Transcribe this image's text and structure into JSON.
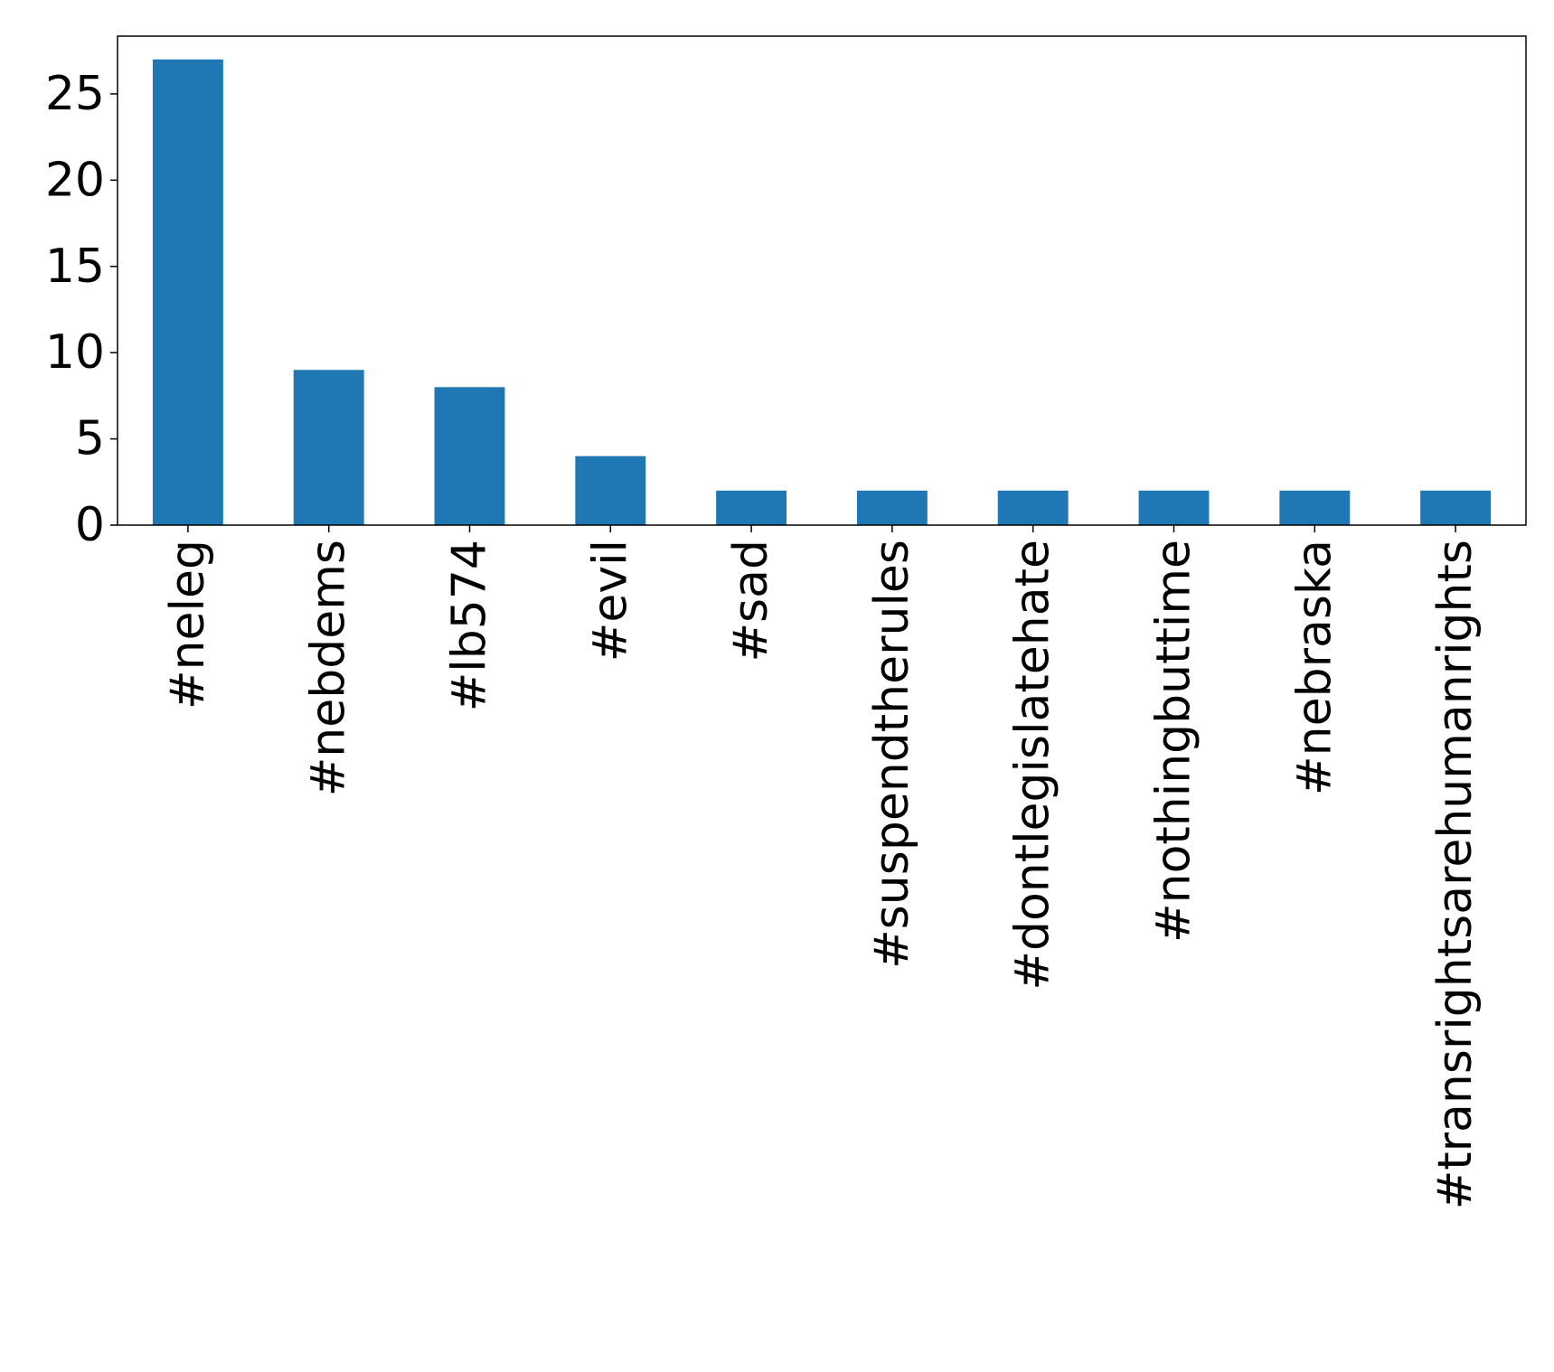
{
  "chart_data": {
    "type": "bar",
    "categories": [
      "#neleg",
      "#nebdems",
      "#lb574",
      "#evil",
      "#sad",
      "#suspendtherules",
      "#dontlegislatehate",
      "#nothingbuttime",
      "#nebraska",
      "#transrightsarehumanrights"
    ],
    "values": [
      27,
      9,
      8,
      4,
      2,
      2,
      2,
      2,
      2,
      2
    ],
    "title": "",
    "xlabel": "",
    "ylabel": "",
    "ylim": [
      0,
      28.35
    ],
    "yticks": [
      "0",
      "5",
      "10",
      "15",
      "20",
      "25"
    ],
    "bar_color": "#1f77b4",
    "grid": false,
    "legend": "none"
  }
}
